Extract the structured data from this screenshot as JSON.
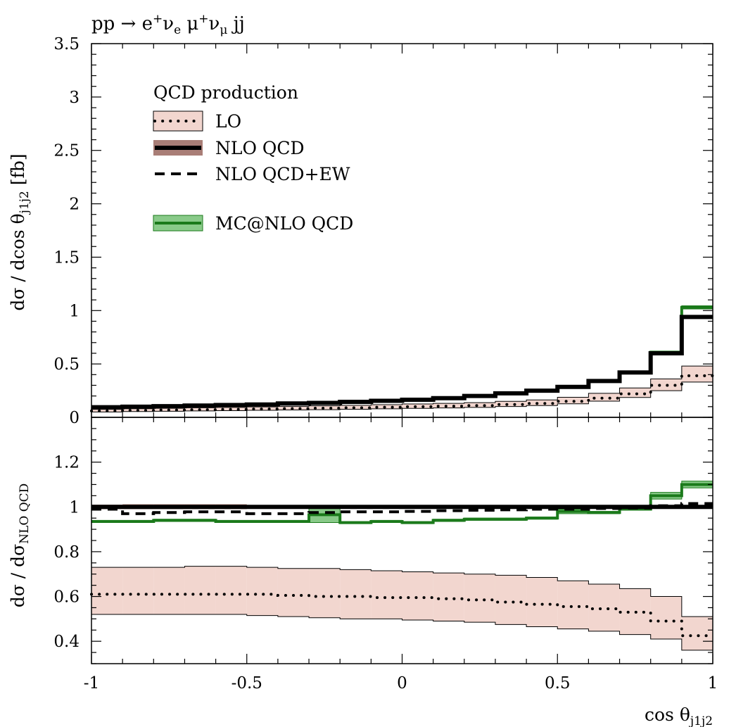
{
  "figure": {
    "title": "pp → e⁺νₑ μ⁺ν_μ jj",
    "xlabel": "cos θ_j1j2",
    "ylabel_top": "dσ / dcos θ_j1j2 [fb]",
    "ylabel_bottom": "dσ / dσ_NLO QCD",
    "legend_heading": "QCD production"
  },
  "colors": {
    "lo_band": "#f0cfc7",
    "nlo_band": "#a07068",
    "mc_line": "#1b7a1b",
    "mc_band": "#7cc47c"
  },
  "chart_data": [
    {
      "type": "line",
      "panel": "main",
      "step": true,
      "x_edges": [
        -1.0,
        -0.9,
        -0.8,
        -0.7,
        -0.6,
        -0.5,
        -0.4,
        -0.3,
        -0.2,
        -0.1,
        0.0,
        0.1,
        0.2,
        0.3,
        0.4,
        0.5,
        0.6,
        0.7,
        0.8,
        0.9,
        1.0
      ],
      "xlim": [
        -1,
        1
      ],
      "ylim": [
        0,
        3.5
      ],
      "x_ticks": [
        "-1",
        "-0.5",
        "0",
        "0.5",
        "1"
      ],
      "y_ticks": [
        "0",
        "0.5",
        "1",
        "1.5",
        "2",
        "2.5",
        "3",
        "3.5"
      ],
      "series": [
        {
          "name": "LO",
          "style": "dotted",
          "values": [
            0.06,
            0.065,
            0.068,
            0.072,
            0.075,
            0.078,
            0.082,
            0.086,
            0.09,
            0.095,
            0.1,
            0.105,
            0.11,
            0.12,
            0.13,
            0.15,
            0.18,
            0.22,
            0.3,
            0.39
          ],
          "band_low": [
            0.05,
            0.054,
            0.057,
            0.06,
            0.063,
            0.066,
            0.069,
            0.072,
            0.076,
            0.08,
            0.084,
            0.088,
            0.093,
            0.101,
            0.11,
            0.127,
            0.152,
            0.186,
            0.25,
            0.33
          ],
          "band_high": [
            0.075,
            0.081,
            0.085,
            0.09,
            0.094,
            0.098,
            0.103,
            0.108,
            0.113,
            0.119,
            0.125,
            0.131,
            0.138,
            0.15,
            0.163,
            0.188,
            0.225,
            0.275,
            0.36,
            0.48
          ]
        },
        {
          "name": "NLO QCD",
          "style": "solid",
          "values": [
            0.095,
            0.1,
            0.105,
            0.11,
            0.115,
            0.12,
            0.13,
            0.135,
            0.145,
            0.155,
            0.165,
            0.18,
            0.2,
            0.225,
            0.25,
            0.285,
            0.34,
            0.42,
            0.6,
            0.94
          ],
          "band_low": [
            0.093,
            0.098,
            0.103,
            0.108,
            0.113,
            0.118,
            0.128,
            0.133,
            0.143,
            0.153,
            0.163,
            0.178,
            0.198,
            0.222,
            0.247,
            0.282,
            0.336,
            0.416,
            0.595,
            0.925
          ],
          "band_high": [
            0.097,
            0.102,
            0.107,
            0.112,
            0.117,
            0.122,
            0.132,
            0.137,
            0.147,
            0.157,
            0.167,
            0.182,
            0.202,
            0.228,
            0.253,
            0.288,
            0.344,
            0.424,
            0.605,
            0.955
          ]
        },
        {
          "name": "NLO QCD+EW",
          "style": "dashed",
          "values": [
            0.093,
            0.097,
            0.102,
            0.107,
            0.112,
            0.117,
            0.127,
            0.132,
            0.142,
            0.152,
            0.161,
            0.176,
            0.196,
            0.221,
            0.246,
            0.281,
            0.336,
            0.416,
            0.598,
            0.945
          ]
        },
        {
          "name": "MC@NLO QCD",
          "style": "solid",
          "values": [
            0.095,
            0.1,
            0.105,
            0.11,
            0.115,
            0.12,
            0.13,
            0.135,
            0.145,
            0.155,
            0.165,
            0.18,
            0.2,
            0.225,
            0.25,
            0.285,
            0.34,
            0.42,
            0.61,
            1.03
          ],
          "band_low": [
            0.093,
            0.098,
            0.103,
            0.108,
            0.113,
            0.118,
            0.127,
            0.13,
            0.142,
            0.152,
            0.162,
            0.177,
            0.197,
            0.222,
            0.246,
            0.281,
            0.335,
            0.414,
            0.6,
            1.015
          ],
          "band_high": [
            0.097,
            0.102,
            0.107,
            0.112,
            0.117,
            0.122,
            0.133,
            0.14,
            0.148,
            0.158,
            0.168,
            0.183,
            0.203,
            0.228,
            0.254,
            0.289,
            0.345,
            0.426,
            0.62,
            1.045
          ]
        }
      ]
    },
    {
      "type": "line",
      "panel": "ratio",
      "step": true,
      "x_edges": [
        -1.0,
        -0.9,
        -0.8,
        -0.7,
        -0.6,
        -0.5,
        -0.4,
        -0.3,
        -0.2,
        -0.1,
        0.0,
        0.1,
        0.2,
        0.3,
        0.4,
        0.5,
        0.6,
        0.7,
        0.8,
        0.9,
        1.0
      ],
      "xlim": [
        -1,
        1
      ],
      "ylim": [
        0.3,
        1.4
      ],
      "x_ticks": [
        "-1",
        "-0.5",
        "0",
        "0.5",
        "1"
      ],
      "y_ticks": [
        "0.4",
        "0.6",
        "0.8",
        "1",
        "1.2"
      ],
      "series": [
        {
          "name": "LO",
          "style": "dotted",
          "values": [
            0.61,
            0.61,
            0.61,
            0.61,
            0.61,
            0.61,
            0.605,
            0.6,
            0.6,
            0.595,
            0.595,
            0.59,
            0.585,
            0.575,
            0.565,
            0.555,
            0.545,
            0.53,
            0.49,
            0.425
          ],
          "band_low": [
            0.52,
            0.52,
            0.52,
            0.52,
            0.52,
            0.515,
            0.51,
            0.505,
            0.5,
            0.5,
            0.495,
            0.49,
            0.485,
            0.475,
            0.465,
            0.455,
            0.445,
            0.43,
            0.41,
            0.36
          ],
          "band_high": [
            0.73,
            0.73,
            0.73,
            0.735,
            0.735,
            0.73,
            0.725,
            0.725,
            0.72,
            0.715,
            0.71,
            0.705,
            0.7,
            0.695,
            0.685,
            0.67,
            0.655,
            0.635,
            0.6,
            0.51
          ]
        },
        {
          "name": "NLO QCD",
          "style": "solid",
          "values": [
            1.0,
            1.0,
            1.0,
            1.0,
            1.0,
            1.0,
            1.0,
            1.0,
            1.0,
            1.0,
            1.0,
            1.0,
            1.0,
            1.0,
            1.0,
            1.0,
            1.0,
            1.0,
            1.0,
            1.0
          ],
          "band_low": [
            0.99,
            0.99,
            0.99,
            0.99,
            0.99,
            0.993,
            0.993,
            0.995,
            0.995,
            0.995,
            0.995,
            0.995,
            0.995,
            0.995,
            0.995,
            0.995,
            0.995,
            0.995,
            0.995,
            0.995
          ],
          "band_high": [
            1.01,
            1.012,
            1.012,
            1.012,
            1.012,
            1.008,
            1.008,
            1.006,
            1.006,
            1.005,
            1.005,
            1.005,
            1.005,
            1.005,
            1.005,
            1.005,
            1.005,
            1.005,
            1.005,
            1.005
          ]
        },
        {
          "name": "NLO QCD+EW",
          "style": "dashed",
          "values": [
            0.99,
            0.97,
            0.975,
            0.978,
            0.978,
            0.97,
            0.97,
            0.975,
            0.978,
            0.978,
            0.98,
            0.983,
            0.985,
            0.987,
            0.99,
            0.99,
            0.993,
            0.995,
            1.005,
            1.015
          ]
        },
        {
          "name": "MC@NLO QCD",
          "style": "solid",
          "values": [
            0.935,
            0.935,
            0.94,
            0.94,
            0.935,
            0.935,
            0.935,
            0.965,
            0.93,
            0.935,
            0.93,
            0.94,
            0.945,
            0.945,
            0.95,
            0.98,
            0.975,
            0.99,
            1.05,
            1.1
          ],
          "band_low": [
            0.93,
            0.93,
            0.935,
            0.935,
            0.93,
            0.93,
            0.93,
            0.93,
            0.925,
            0.93,
            0.925,
            0.935,
            0.94,
            0.94,
            0.945,
            0.97,
            0.97,
            0.985,
            1.035,
            1.085
          ],
          "band_high": [
            0.94,
            0.94,
            0.945,
            0.945,
            0.94,
            0.94,
            0.94,
            1.0,
            0.935,
            0.94,
            0.935,
            0.945,
            0.95,
            0.95,
            0.955,
            0.99,
            0.98,
            0.995,
            1.065,
            1.115
          ]
        }
      ]
    }
  ]
}
